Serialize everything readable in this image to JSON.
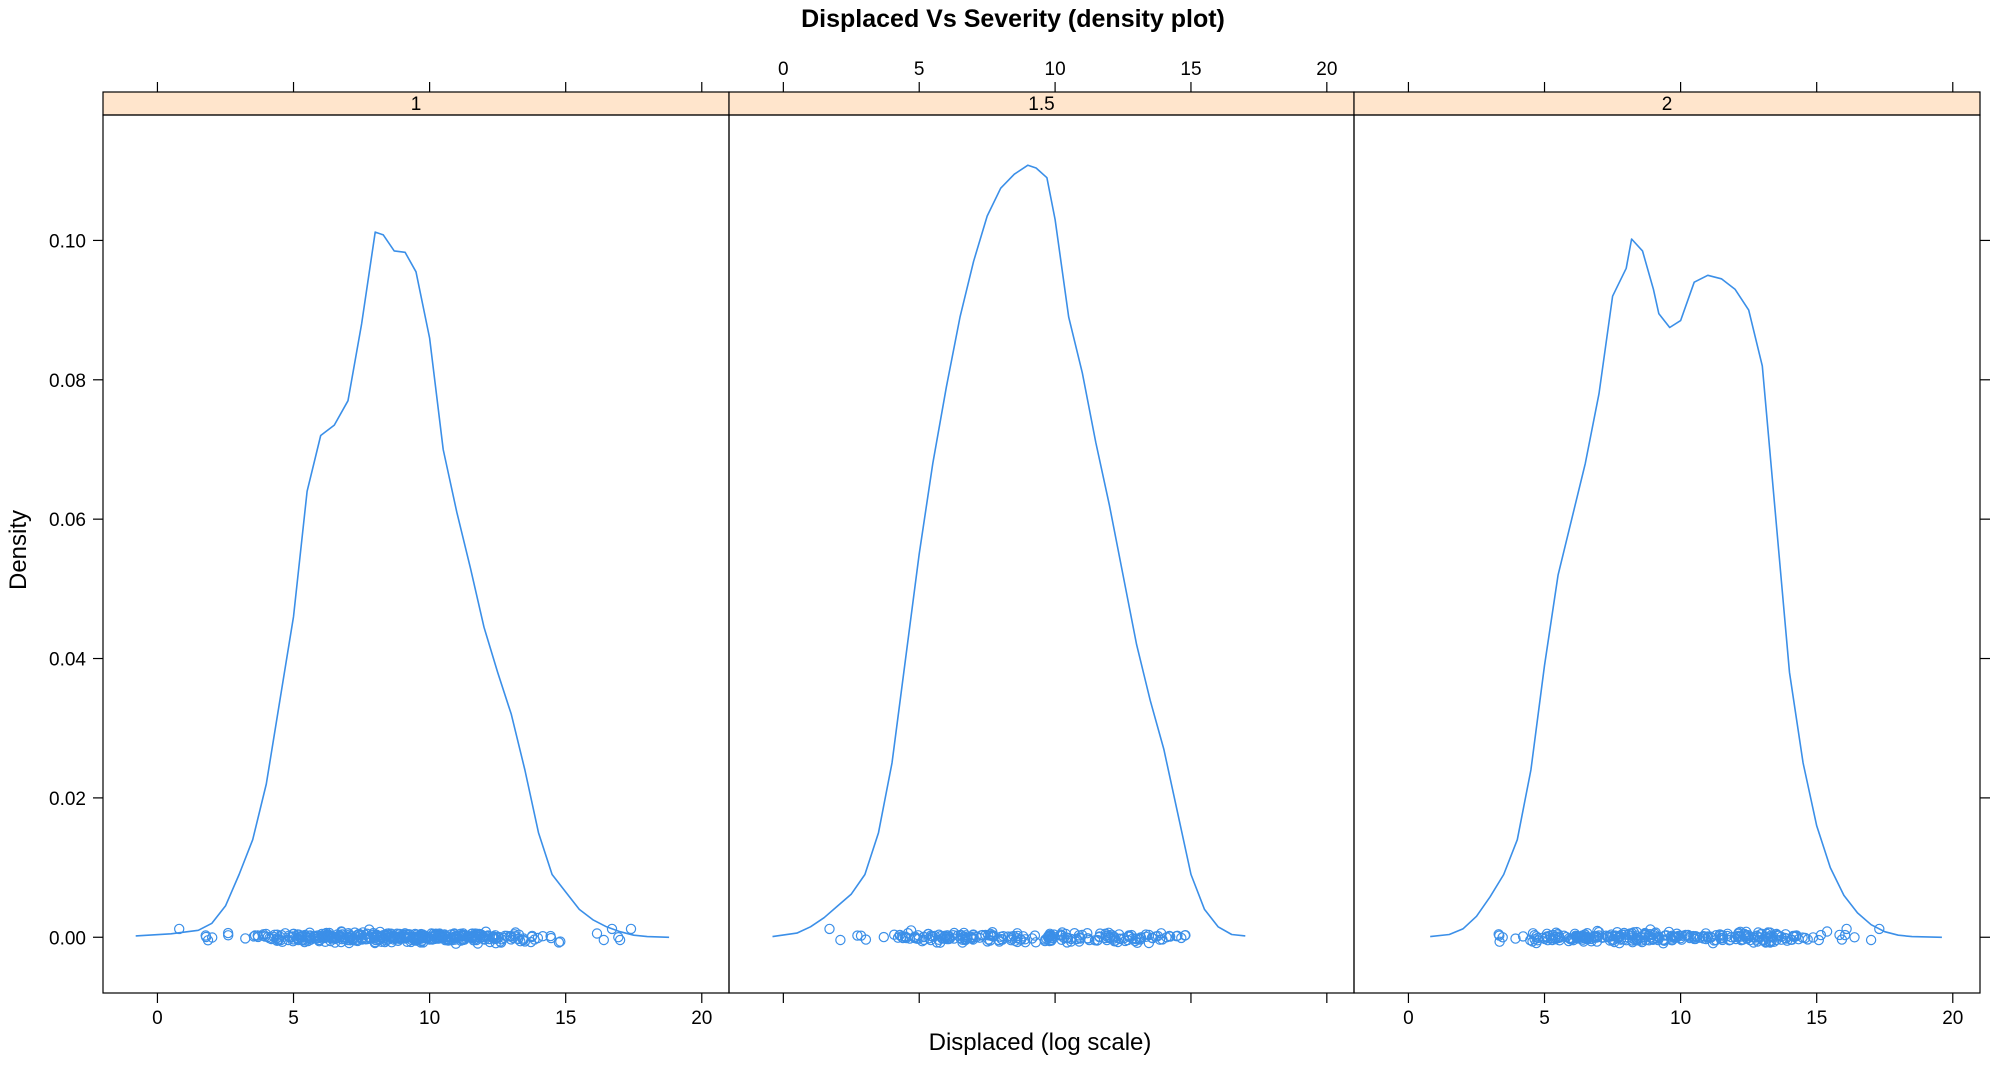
{
  "chart_data": {
    "type": "density",
    "title": "Displaced Vs Severity (density plot)",
    "xlabel": "Displaced (log scale)",
    "ylabel": "Density",
    "xlim": [
      -2,
      21
    ],
    "ylim": [
      -0.008,
      0.118
    ],
    "x_ticks": [
      0,
      5,
      10,
      15,
      20
    ],
    "y_ticks": [
      0.0,
      0.02,
      0.04,
      0.06,
      0.08,
      0.1
    ],
    "y_tick_labels": [
      "0.00",
      "0.02",
      "0.04",
      "0.06",
      "0.08",
      "0.10"
    ],
    "grid": false,
    "strip_color": "#ffe5cc",
    "line_color": "#3b8fe8",
    "panels": [
      {
        "label": "1",
        "x_tick_labels_side": "bottom",
        "density": [
          [
            -0.8,
            0.0002
          ],
          [
            0.5,
            0.0005
          ],
          [
            1.5,
            0.001
          ],
          [
            2.0,
            0.002
          ],
          [
            2.5,
            0.0045
          ],
          [
            3.0,
            0.009
          ],
          [
            3.5,
            0.014
          ],
          [
            4.0,
            0.022
          ],
          [
            4.5,
            0.034
          ],
          [
            5.0,
            0.046
          ],
          [
            5.5,
            0.064
          ],
          [
            6.0,
            0.072
          ],
          [
            6.5,
            0.0735
          ],
          [
            7.0,
            0.077
          ],
          [
            7.5,
            0.088
          ],
          [
            8.0,
            0.1012
          ],
          [
            8.3,
            0.1008
          ],
          [
            8.7,
            0.0985
          ],
          [
            9.1,
            0.0983
          ],
          [
            9.5,
            0.0955
          ],
          [
            10.0,
            0.086
          ],
          [
            10.5,
            0.07
          ],
          [
            11.0,
            0.061
          ],
          [
            11.5,
            0.053
          ],
          [
            12.0,
            0.0445
          ],
          [
            12.5,
            0.038
          ],
          [
            13.0,
            0.032
          ],
          [
            13.5,
            0.024
          ],
          [
            14.0,
            0.015
          ],
          [
            14.5,
            0.009
          ],
          [
            15.0,
            0.0065
          ],
          [
            15.5,
            0.004
          ],
          [
            16.0,
            0.0025
          ],
          [
            16.5,
            0.0015
          ],
          [
            17.0,
            0.0008
          ],
          [
            17.5,
            0.0003
          ],
          [
            18.0,
            0.0001
          ],
          [
            18.8,
            0.0
          ]
        ],
        "rug": {
          "min": 0.8,
          "max": 17.4,
          "count": 420,
          "outliers": [
            0.8,
            16.4,
            16.7,
            17.0,
            17.4
          ]
        }
      },
      {
        "label": "1.5",
        "x_tick_labels_side": "top",
        "density": [
          [
            -0.4,
            0.0001
          ],
          [
            0.5,
            0.0006
          ],
          [
            1.0,
            0.0015
          ],
          [
            1.5,
            0.0028
          ],
          [
            2.0,
            0.0045
          ],
          [
            2.5,
            0.0062
          ],
          [
            3.0,
            0.009
          ],
          [
            3.5,
            0.015
          ],
          [
            4.0,
            0.025
          ],
          [
            4.5,
            0.04
          ],
          [
            5.0,
            0.055
          ],
          [
            5.5,
            0.068
          ],
          [
            6.0,
            0.079
          ],
          [
            6.5,
            0.089
          ],
          [
            7.0,
            0.097
          ],
          [
            7.5,
            0.1035
          ],
          [
            8.0,
            0.1075
          ],
          [
            8.5,
            0.1095
          ],
          [
            9.0,
            0.1108
          ],
          [
            9.3,
            0.1104
          ],
          [
            9.7,
            0.109
          ],
          [
            10.0,
            0.103
          ],
          [
            10.5,
            0.089
          ],
          [
            11.0,
            0.081
          ],
          [
            11.5,
            0.071
          ],
          [
            12.0,
            0.062
          ],
          [
            12.5,
            0.052
          ],
          [
            13.0,
            0.042
          ],
          [
            13.5,
            0.034
          ],
          [
            14.0,
            0.027
          ],
          [
            14.5,
            0.018
          ],
          [
            15.0,
            0.009
          ],
          [
            15.5,
            0.004
          ],
          [
            16.0,
            0.0015
          ],
          [
            16.5,
            0.0004
          ],
          [
            17.0,
            0.0002
          ]
        ],
        "rug": {
          "min": 1.7,
          "max": 15.0,
          "count": 220,
          "outliers": [
            1.7,
            2.1
          ]
        }
      },
      {
        "label": "2",
        "x_tick_labels_side": "bottom",
        "density": [
          [
            0.8,
            0.0001
          ],
          [
            1.5,
            0.0004
          ],
          [
            2.0,
            0.0012
          ],
          [
            2.5,
            0.003
          ],
          [
            3.0,
            0.0058
          ],
          [
            3.5,
            0.009
          ],
          [
            4.0,
            0.014
          ],
          [
            4.5,
            0.024
          ],
          [
            5.0,
            0.039
          ],
          [
            5.5,
            0.052
          ],
          [
            6.0,
            0.06
          ],
          [
            6.5,
            0.068
          ],
          [
            7.0,
            0.078
          ],
          [
            7.5,
            0.092
          ],
          [
            8.0,
            0.096
          ],
          [
            8.2,
            0.1002
          ],
          [
            8.6,
            0.0985
          ],
          [
            9.0,
            0.093
          ],
          [
            9.2,
            0.0895
          ],
          [
            9.6,
            0.0875
          ],
          [
            10.0,
            0.0885
          ],
          [
            10.5,
            0.094
          ],
          [
            11.0,
            0.095
          ],
          [
            11.5,
            0.0945
          ],
          [
            12.0,
            0.093
          ],
          [
            12.5,
            0.09
          ],
          [
            13.0,
            0.082
          ],
          [
            13.5,
            0.06
          ],
          [
            14.0,
            0.038
          ],
          [
            14.5,
            0.025
          ],
          [
            15.0,
            0.016
          ],
          [
            15.5,
            0.01
          ],
          [
            16.0,
            0.006
          ],
          [
            16.5,
            0.0035
          ],
          [
            17.0,
            0.0018
          ],
          [
            17.5,
            0.0008
          ],
          [
            18.0,
            0.0003
          ],
          [
            18.5,
            0.0001
          ],
          [
            19.6,
            0.0
          ]
        ],
        "rug": {
          "min": 3.0,
          "max": 17.3,
          "count": 300,
          "outliers": [
            16.1,
            17.0,
            17.3
          ]
        }
      }
    ]
  }
}
